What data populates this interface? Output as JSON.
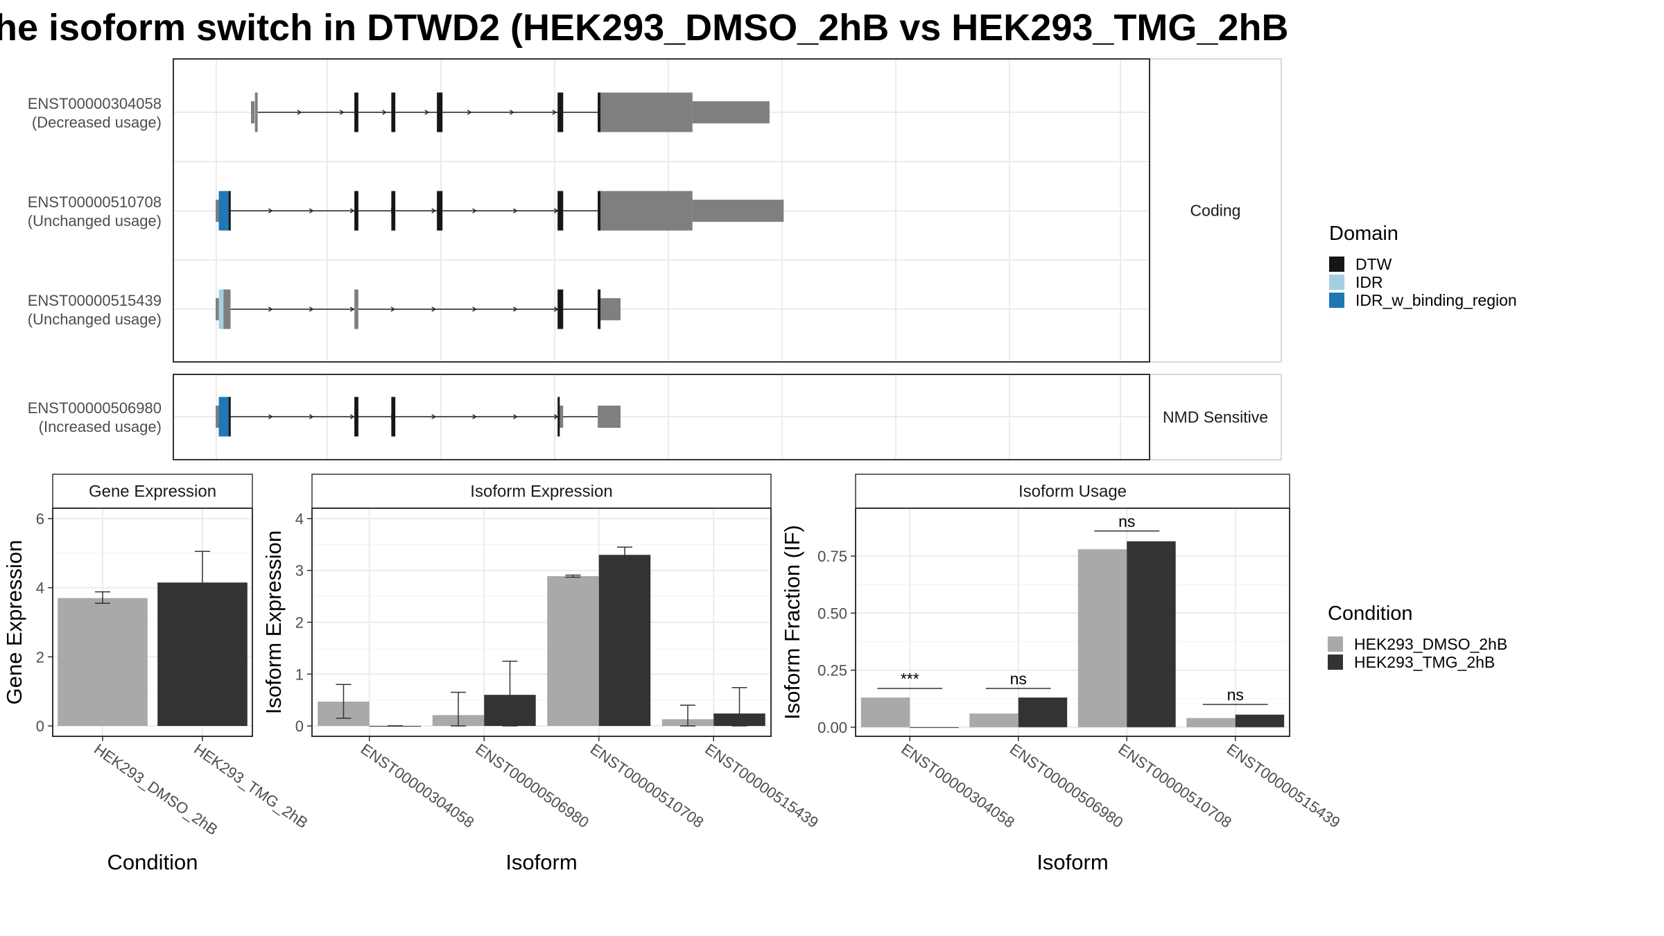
{
  "title": "he isoform switch in DTWD2 (HEK293_DMSO_2hB vs HEK293_TMG_2hB",
  "colors": {
    "dtw": "#161616",
    "idr": "#a6cee3",
    "idr_binding": "#1f78b4",
    "utr": "#7f7f7f",
    "dmso": "#a9a9a9",
    "tmg": "#333333",
    "grid": "#ebebeb",
    "strip_bg": "#ffffff",
    "border": "#333333"
  },
  "structure": {
    "facets": [
      "Coding",
      "NMD Sensitive"
    ],
    "isoforms": [
      {
        "id": "ENST00000304058",
        "usage": "(Decreased usage)",
        "facet": "Coding",
        "utr": [
          [
            0.9,
            0.99
          ],
          [
            12.13,
            14.09
          ]
        ],
        "cds": [
          [
            1.0,
            1.07
          ],
          [
            3.53,
            3.63
          ],
          [
            4.47,
            4.57
          ],
          [
            5.63,
            5.77
          ],
          [
            8.7,
            8.84
          ],
          [
            9.72,
            9.79
          ],
          [
            9.79,
            12.13
          ]
        ],
        "domains": [
          {
            "name": "DTW",
            "ranges": [
              [
                3.53,
                3.63
              ],
              [
                4.47,
                4.57
              ],
              [
                5.63,
                5.77
              ],
              [
                8.7,
                8.84
              ],
              [
                9.72,
                9.79
              ]
            ]
          }
        ],
        "intron": [
          1.07,
          9.72
        ]
      },
      {
        "id": "ENST00000510708",
        "usage": "(Unchanged usage)",
        "facet": "Coding",
        "utr": [
          [
            0.0,
            0.08
          ],
          [
            12.13,
            14.45
          ]
        ],
        "cds": [
          [
            0.08,
            0.33
          ],
          [
            0.33,
            0.38
          ],
          [
            3.53,
            3.63
          ],
          [
            4.47,
            4.57
          ],
          [
            5.63,
            5.77
          ],
          [
            8.7,
            8.84
          ],
          [
            9.72,
            9.79
          ],
          [
            9.79,
            12.13
          ]
        ],
        "domains": [
          {
            "name": "IDR_w_binding_region",
            "ranges": [
              [
                0.08,
                0.33
              ]
            ]
          },
          {
            "name": "DTW",
            "ranges": [
              [
                0.33,
                0.38
              ],
              [
                3.53,
                3.63
              ],
              [
                4.47,
                4.57
              ],
              [
                5.63,
                5.77
              ],
              [
                8.7,
                8.84
              ],
              [
                9.72,
                9.79
              ]
            ]
          }
        ],
        "intron": [
          0.38,
          9.72
        ]
      },
      {
        "id": "ENST00000515439",
        "usage": "(Unchanged usage)",
        "facet": "Coding",
        "utr": [
          [
            0.0,
            0.08
          ],
          [
            9.79,
            10.3
          ]
        ],
        "cds": [
          [
            0.08,
            0.2
          ],
          [
            0.2,
            0.38
          ],
          [
            3.53,
            3.63
          ],
          [
            8.7,
            8.84
          ],
          [
            9.72,
            9.79
          ]
        ],
        "domains": [
          {
            "name": "IDR",
            "ranges": [
              [
                0.08,
                0.2
              ]
            ]
          },
          {
            "name": "DTW",
            "ranges": [
              [
                8.7,
                8.84
              ],
              [
                9.72,
                9.79
              ]
            ]
          }
        ],
        "intron": [
          0.38,
          9.72
        ]
      },
      {
        "id": "ENST00000506980",
        "usage": "(Increased usage)",
        "facet": "NMD Sensitive",
        "utr": [
          [
            0.0,
            0.08
          ],
          [
            8.72,
            8.84
          ],
          [
            9.72,
            10.3
          ]
        ],
        "cds": [
          [
            0.08,
            0.33
          ],
          [
            0.33,
            0.38
          ],
          [
            3.53,
            3.63
          ],
          [
            4.47,
            4.57
          ],
          [
            8.7,
            8.72
          ]
        ],
        "domains": [
          {
            "name": "IDR_w_binding_region",
            "ranges": [
              [
                0.08,
                0.33
              ]
            ]
          },
          {
            "name": "DTW",
            "ranges": [
              [
                0.33,
                0.38
              ],
              [
                3.53,
                3.63
              ],
              [
                4.47,
                4.57
              ],
              [
                8.7,
                8.72
              ]
            ]
          }
        ],
        "intron": [
          0.38,
          9.72
        ]
      }
    ]
  },
  "legend_domain": {
    "title": "Domain",
    "items": [
      {
        "label": "DTW",
        "color": "#161616"
      },
      {
        "label": "IDR",
        "color": "#a6cee3"
      },
      {
        "label": "IDR_w_binding_region",
        "color": "#1f78b4"
      }
    ]
  },
  "legend_condition": {
    "title": "Condition",
    "items": [
      {
        "label": "HEK293_DMSO_2hB",
        "color": "#a9a9a9"
      },
      {
        "label": "HEK293_TMG_2hB",
        "color": "#333333"
      }
    ]
  },
  "chart_data": [
    {
      "type": "bar",
      "title": "Gene Expression",
      "xlabel": "Condition",
      "ylabel": "Gene Expression",
      "categories": [
        "HEK293_DMSO_2hB",
        "HEK293_TMG_2hB"
      ],
      "values": [
        3.7,
        4.15
      ],
      "errors": [
        [
          3.55,
          3.88
        ],
        [
          3.25,
          5.05
        ]
      ],
      "ylim": [
        -0.3,
        6.3
      ],
      "yticks": [
        0,
        2,
        4,
        6
      ]
    },
    {
      "type": "bar",
      "title": "Isoform Expression",
      "xlabel": "Isoform",
      "ylabel": "Isoform Expression",
      "categories": [
        "ENST00000304058",
        "ENST00000506980",
        "ENST00000510708",
        "ENST00000515439"
      ],
      "series": [
        {
          "name": "HEK293_DMSO_2hB",
          "values": [
            0.47,
            0.21,
            2.89,
            0.13
          ],
          "errors": [
            [
              0.15,
              0.8
            ],
            [
              0.0,
              0.65
            ],
            [
              2.87,
              2.91
            ],
            [
              0.0,
              0.4
            ]
          ]
        },
        {
          "name": "HEK293_TMG_2hB",
          "values": [
            0.0,
            0.6,
            3.3,
            0.24
          ],
          "errors": [
            [
              0.0,
              0.0
            ],
            [
              0.0,
              1.25
            ],
            [
              3.15,
              3.45
            ],
            [
              0.0,
              0.74
            ]
          ]
        }
      ],
      "ylim": [
        -0.2,
        4.2
      ],
      "yticks": [
        0,
        1,
        2,
        3,
        4
      ]
    },
    {
      "type": "bar",
      "title": "Isoform Usage",
      "xlabel": "Isoform",
      "ylabel": "Isoform Fraction (IF)",
      "categories": [
        "ENST00000304058",
        "ENST00000506980",
        "ENST00000510708",
        "ENST00000515439"
      ],
      "series": [
        {
          "name": "HEK293_DMSO_2hB",
          "values": [
            0.13,
            0.06,
            0.78,
            0.04
          ]
        },
        {
          "name": "HEK293_TMG_2hB",
          "values": [
            0.0,
            0.13,
            0.815,
            0.055
          ]
        }
      ],
      "significance": [
        "***",
        "ns",
        "ns",
        "ns"
      ],
      "significance_y": [
        0.17,
        0.17,
        0.86,
        0.1
      ],
      "ylim": [
        -0.04,
        0.96
      ],
      "yticks": [
        0.0,
        0.25,
        0.5,
        0.75
      ],
      "yticklabels": [
        "0.00",
        "0.25",
        "0.50",
        "0.75"
      ]
    }
  ]
}
